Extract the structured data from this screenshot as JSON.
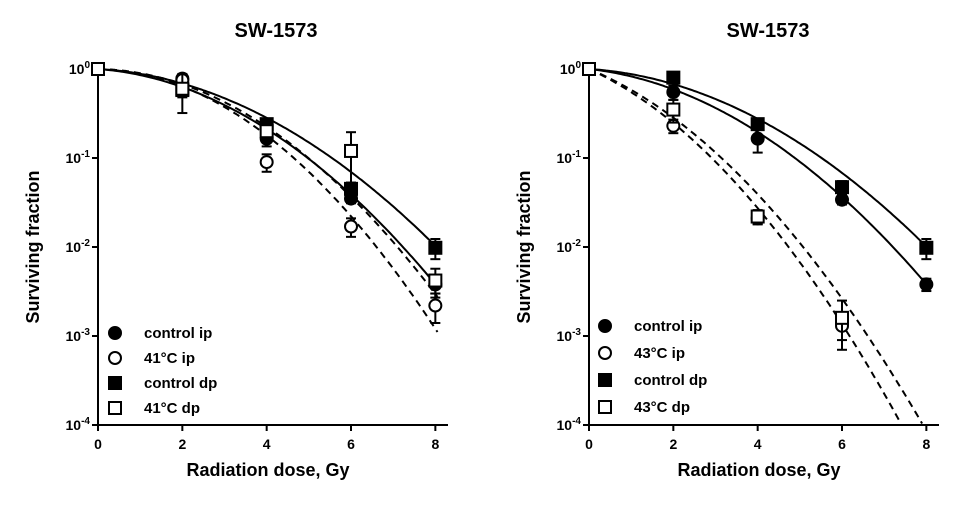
{
  "chart_data": [
    {
      "type": "scatter",
      "title": "SW-1573",
      "xlabel": "Radiation dose, Gy",
      "ylabel": "Surviving fraction",
      "xlim": [
        0,
        8.3
      ],
      "ylim": [
        0.0001,
        1
      ],
      "yscale": "log",
      "xticks": [
        0,
        2,
        4,
        6,
        8
      ],
      "xtick_labels": [
        "0",
        "2",
        "4",
        "6",
        "8"
      ],
      "yticks": [
        1,
        0.1,
        0.01,
        0.001,
        0.0001
      ],
      "ytick_labels": [
        {
          "base": "10",
          "exp": "0"
        },
        {
          "base": "10",
          "exp": "-1"
        },
        {
          "base": "10",
          "exp": "-2"
        },
        {
          "base": "10",
          "exp": "-3"
        },
        {
          "base": "10",
          "exp": "-4"
        }
      ],
      "legend_position": "bottom-left",
      "series": [
        {
          "name": "control ip",
          "marker": "circle-filled",
          "fit_line": "solid",
          "x": [
            0,
            2,
            4,
            6,
            8
          ],
          "y": [
            1,
            0.78,
            0.165,
            0.035,
            0.0038
          ],
          "error": [
            0,
            0.07,
            0.03,
            0.004,
            0.0008
          ],
          "fit": {
            "alpha": 0.08,
            "beta": 0.077
          }
        },
        {
          "name": "41°C ip",
          "marker": "circle-open",
          "fit_line": "dashed",
          "x": [
            0,
            2,
            4,
            6,
            8
          ],
          "y": [
            1,
            0.75,
            0.09,
            0.017,
            0.0022
          ],
          "error": [
            0,
            0.07,
            0.02,
            0.004,
            0.0008
          ],
          "fit": {
            "alpha": 0.02,
            "beta": 0.1025
          }
        },
        {
          "name": "control dp",
          "marker": "square-filled",
          "fit_line": "solid",
          "x": [
            0,
            2,
            4,
            6,
            8
          ],
          "y": [
            1,
            0.58,
            0.24,
            0.045,
            0.0098
          ],
          "error": [
            0,
            0.1,
            0.03,
            0.008,
            0.0025
          ],
          "fit": {
            "alpha": 0.06,
            "beta": 0.064
          }
        },
        {
          "name": "41°C dp",
          "marker": "square-open",
          "fit_line": "dashed",
          "x": [
            0,
            2,
            4,
            6,
            8
          ],
          "y": [
            1,
            0.6,
            0.2,
            0.12,
            0.0042
          ],
          "error": [
            0,
            0.28,
            0.03,
            0.075,
            0.0015
          ],
          "fit": {
            "alpha": 0.02,
            "beta": 0.0885
          }
        }
      ]
    },
    {
      "type": "scatter",
      "title": "SW-1573",
      "xlabel": "Radiation dose, Gy",
      "ylabel": "Surviving fraction",
      "xlim": [
        0,
        8.3
      ],
      "ylim": [
        0.0001,
        1
      ],
      "yscale": "log",
      "xticks": [
        0,
        2,
        4,
        6,
        8
      ],
      "xtick_labels": [
        "0",
        "2",
        "4",
        "6",
        "8"
      ],
      "yticks": [
        1,
        0.1,
        0.01,
        0.001,
        0.0001
      ],
      "ytick_labels": [
        {
          "base": "10",
          "exp": "0"
        },
        {
          "base": "10",
          "exp": "-1"
        },
        {
          "base": "10",
          "exp": "-2"
        },
        {
          "base": "10",
          "exp": "-3"
        },
        {
          "base": "10",
          "exp": "-4"
        }
      ],
      "legend_position": "bottom-left",
      "series": [
        {
          "name": "control ip",
          "marker": "circle-filled",
          "fit_line": "solid",
          "x": [
            0,
            2,
            4,
            6,
            8
          ],
          "y": [
            1,
            0.55,
            0.165,
            0.034,
            0.0038
          ],
          "error": [
            0,
            0.1,
            0.05,
            0.004,
            0.0006
          ],
          "fit": {
            "alpha": 0.12,
            "beta": 0.072
          }
        },
        {
          "name": "43°C ip",
          "marker": "circle-open",
          "fit_line": "dashed",
          "x": [
            0,
            2,
            4,
            6
          ],
          "y": [
            1,
            0.23,
            0.021,
            0.0013
          ],
          "error": [
            0,
            0.04,
            0.003,
            0.0004
          ],
          "fit": {
            "alpha": 0.5,
            "beta": 0.1
          }
        },
        {
          "name": "control dp",
          "marker": "square-filled",
          "fit_line": "solid",
          "x": [
            0,
            2,
            4,
            6,
            8
          ],
          "y": [
            1,
            0.8,
            0.24,
            0.047,
            0.0098
          ],
          "error": [
            0,
            0.08,
            0.03,
            0.008,
            0.0025
          ],
          "fit": {
            "alpha": 0.07,
            "beta": 0.063
          }
        },
        {
          "name": "43°C dp",
          "marker": "square-open",
          "fit_line": "dashed",
          "x": [
            0,
            2,
            4,
            6
          ],
          "y": [
            1,
            0.35,
            0.022,
            0.0016
          ],
          "error": [
            0,
            0.1,
            0.004,
            0.0009
          ],
          "fit": {
            "alpha": 0.45,
            "beta": 0.09
          }
        }
      ]
    }
  ]
}
